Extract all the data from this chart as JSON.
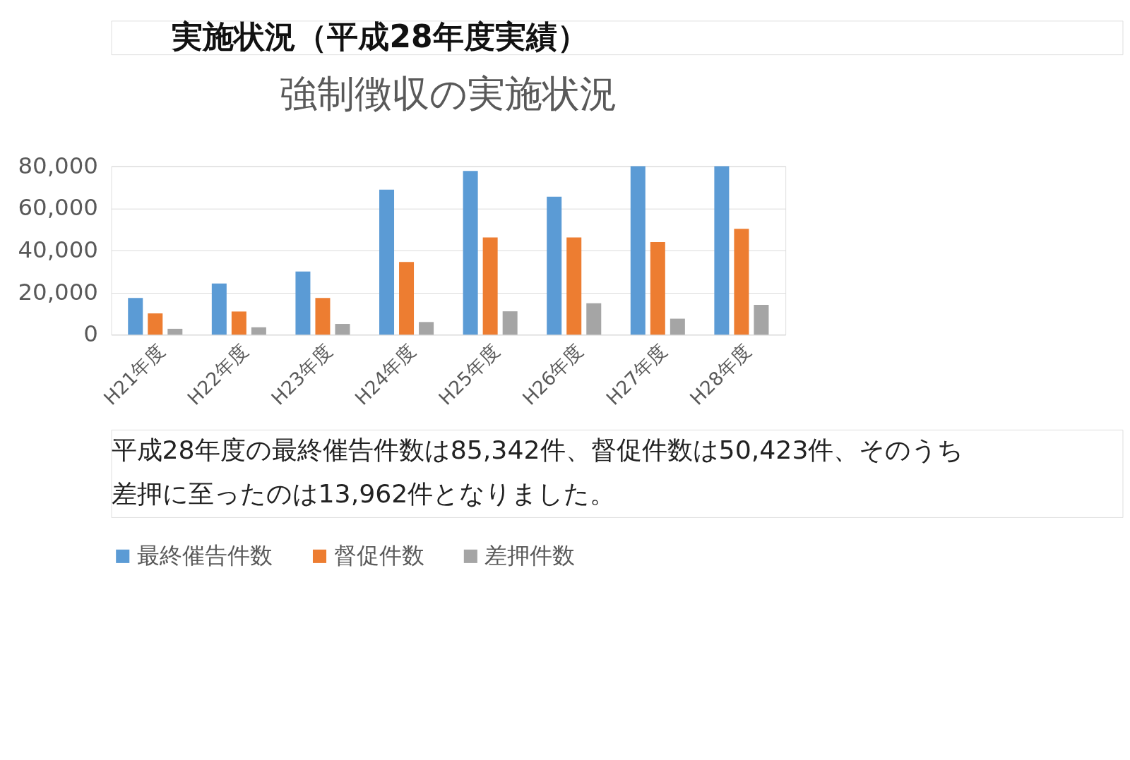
{
  "chart_data": {
    "type": "bar",
    "title": "実施状況（平成28年度実績）",
    "subtitle": "強制徴収の実施状況",
    "categories": [
      "H21年度",
      "H22年度",
      "H23年度",
      "H24年度",
      "H25年度",
      "H26年度",
      "H27年度",
      "H28年度"
    ],
    "series": [
      {
        "name": "最終催告件数",
        "color": "#5b9bd5",
        "values": [
          17400,
          24300,
          30000,
          68900,
          77800,
          65500,
          80000,
          80000
        ]
      },
      {
        "name": "督促件数",
        "color": "#ed7d31",
        "values": [
          10100,
          11000,
          17400,
          34500,
          46200,
          46200,
          44000,
          50300
        ]
      },
      {
        "name": "差押件数",
        "color": "#a5a5a5",
        "values": [
          2800,
          3500,
          5100,
          6000,
          11100,
          14900,
          7600,
          14200
        ]
      }
    ],
    "ylim": [
      0,
      80000
    ],
    "yticks": [
      {
        "value": 0,
        "label": "0"
      },
      {
        "value": 20000,
        "label": "20,000"
      },
      {
        "value": 40000,
        "label": "40,000"
      },
      {
        "value": 60000,
        "label": "60,000"
      },
      {
        "value": 80000,
        "label": "80,000"
      }
    ],
    "grid": "y",
    "legend": "bottom",
    "annotations": [
      "平成28年度の最終催告件数は85,342件、督促件数は50,423件、そのうち差押に至ったのは13,962件となりました。"
    ]
  }
}
